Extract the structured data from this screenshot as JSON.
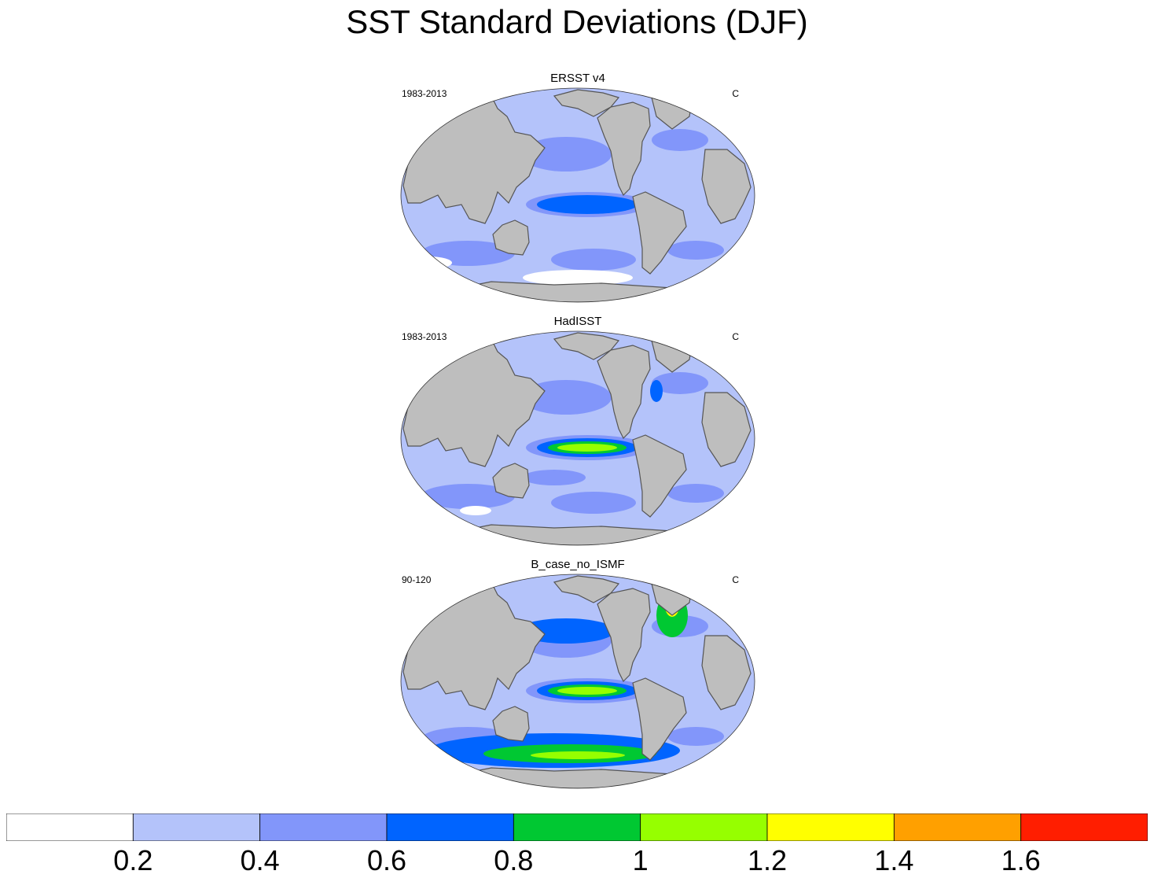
{
  "title": "SST Standard Deviations (DJF)",
  "panels": [
    {
      "title": "ERSST v4",
      "period": "1983-2013",
      "units": "C",
      "enso_peak_level": 3
    },
    {
      "title": "HadISST",
      "period": "1983-2013",
      "units": "C",
      "enso_peak_level": 5
    },
    {
      "title": "B_case_no_ISMF",
      "period": "90-120",
      "units": "C",
      "enso_peak_level": 5
    }
  ],
  "colorbar": {
    "colors": [
      "#ffffff",
      "#b4c3fa",
      "#8296fa",
      "#0064ff",
      "#00c832",
      "#96ff00",
      "#ffff00",
      "#ffa000",
      "#ff1e00"
    ],
    "labels": [
      "0.2",
      "0.4",
      "0.6",
      "0.8",
      "1",
      "1.2",
      "1.4",
      "1.6"
    ]
  },
  "land_color": "#bebebe",
  "coast_color": "#555555"
}
